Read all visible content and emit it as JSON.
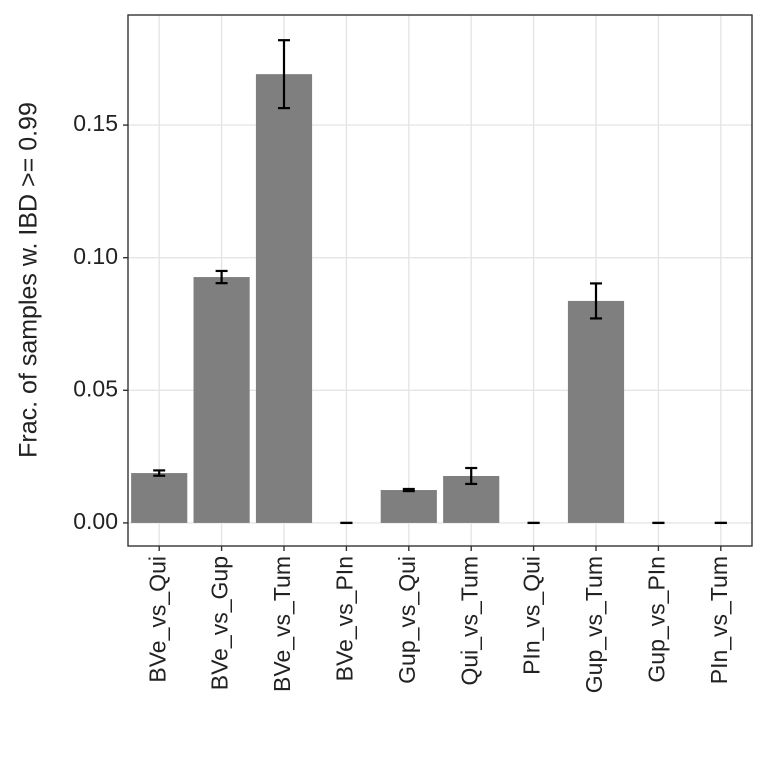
{
  "chart_data": {
    "type": "bar",
    "y_label": "Frac. of samples w. IBD >= 0.99",
    "categories": [
      "BVe_vs_Qui",
      "BVe_vs_Gup",
      "BVe_vs_Tum",
      "BVe_vs_PIn",
      "Gup_vs_Qui",
      "Qui_vs_Tum",
      "PIn_vs_Qui",
      "Gup_vs_Tum",
      "Gup_vs_PIn",
      "PIn_vs_Tum"
    ],
    "values": [
      0.0188,
      0.0927,
      0.1692,
      0,
      0.0124,
      0.0177,
      0,
      0.0837,
      0,
      0
    ],
    "errors": [
      0.001,
      0.0023,
      0.0128,
      0,
      0.0004,
      0.003,
      0,
      0.0066,
      0,
      0
    ],
    "color": "#7f7f7f",
    "ylim": [
      -0.0087,
      0.1915
    ],
    "yticks": [
      {
        "value": 0,
        "label": "0.00"
      },
      0.05,
      {
        "value": 0.1,
        "label": "0.10"
      },
      {
        "value": 0.15,
        "label": "0.15"
      }
    ],
    "grid": true
  }
}
